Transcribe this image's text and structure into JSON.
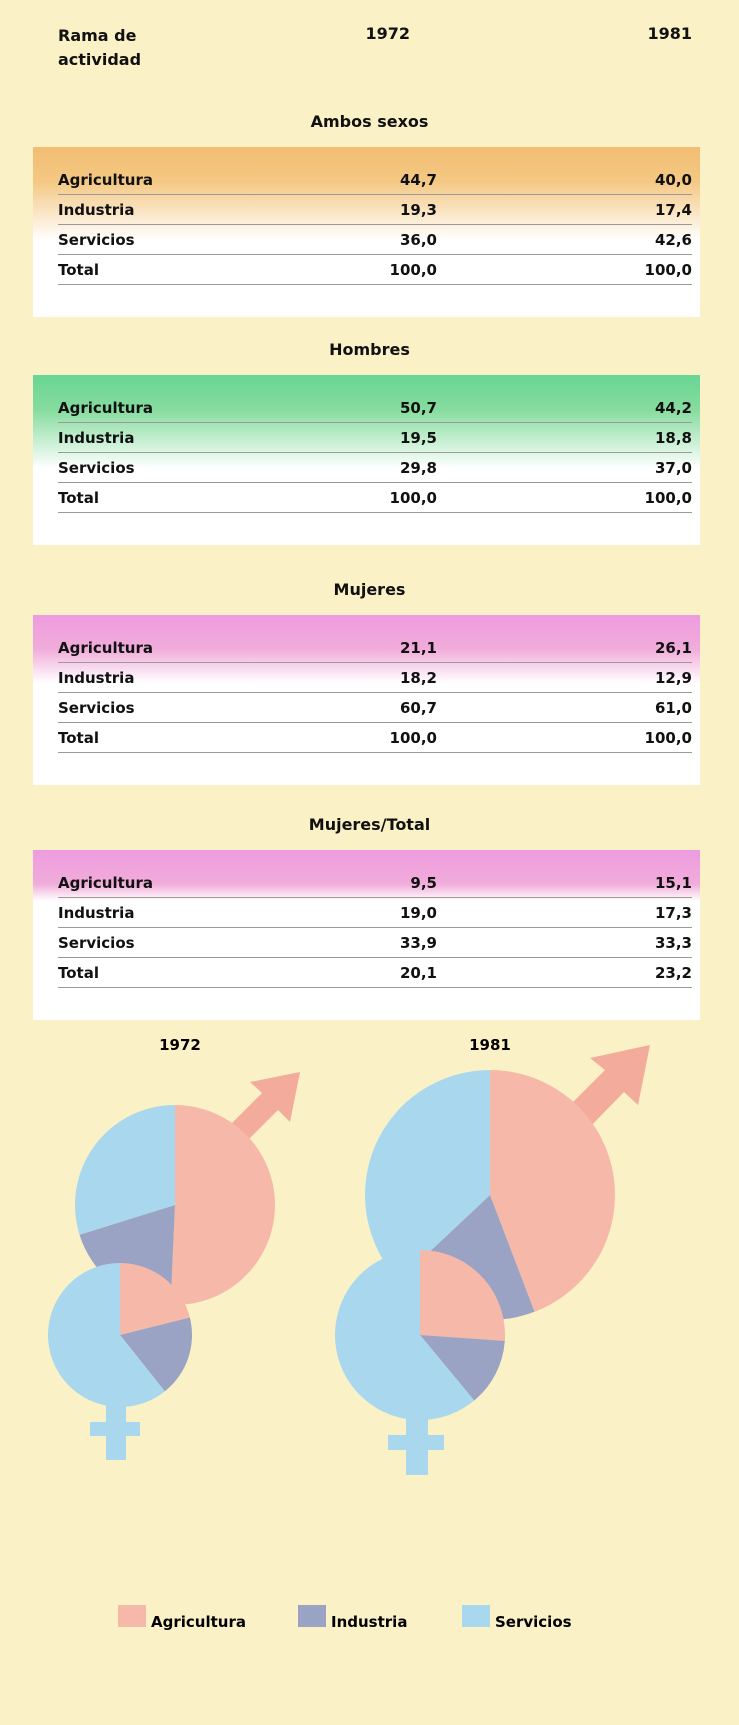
{
  "header": {
    "columns": [
      "Rama de actividad",
      "1972",
      "1981"
    ]
  },
  "sections": [
    {
      "title": "Ambos sexos",
      "rows": [
        [
          "Agricultura",
          "44,7",
          "40,0"
        ],
        [
          "Industria",
          "19,3",
          "17,4"
        ],
        [
          "Servicios",
          "36,0",
          "42,6"
        ],
        [
          "Total",
          "100,0",
          "100,0"
        ]
      ]
    },
    {
      "title": "Hombres",
      "rows": [
        [
          "Agricultura",
          "50,7",
          "44,2"
        ],
        [
          "Industria",
          "19,5",
          "18,8"
        ],
        [
          "Servicios",
          "29,8",
          "37,0"
        ],
        [
          "Total",
          "100,0",
          "100,0"
        ]
      ]
    },
    {
      "title": "Mujeres",
      "rows": [
        [
          "Agricultura",
          "21,1",
          "26,1"
        ],
        [
          "Industria",
          "18,2",
          "12,9"
        ],
        [
          "Servicios",
          "60,7",
          "61,0"
        ],
        [
          "Total",
          "100,0",
          "100,0"
        ]
      ]
    },
    {
      "title": "Mujeres/Total",
      "rows": [
        [
          "Agricultura",
          "9,5",
          "15,1"
        ],
        [
          "Industria",
          "19,0",
          "17,3"
        ],
        [
          "Servicios",
          "33,9",
          "33,3"
        ],
        [
          "Total",
          "20,1",
          "23,2"
        ]
      ]
    }
  ],
  "legend": {
    "categories": [
      "Agricultura",
      "Industria",
      "Servicios"
    ],
    "colors": [
      "#f6b8a9",
      "#9aa3c4",
      "#a9d8ee"
    ]
  },
  "chart_data": [
    {
      "type": "pie",
      "title": "1972",
      "series": [
        {
          "values": [
            50.7,
            19.5,
            29.8
          ]
        },
        {
          "values": [
            21.1,
            18.2,
            60.7
          ]
        }
      ]
    },
    {
      "type": "pie",
      "title": "1981",
      "series": [
        {
          "values": [
            44.2,
            18.8,
            37.0
          ]
        },
        {
          "values": [
            26.1,
            12.9,
            61.0
          ]
        }
      ]
    }
  ]
}
